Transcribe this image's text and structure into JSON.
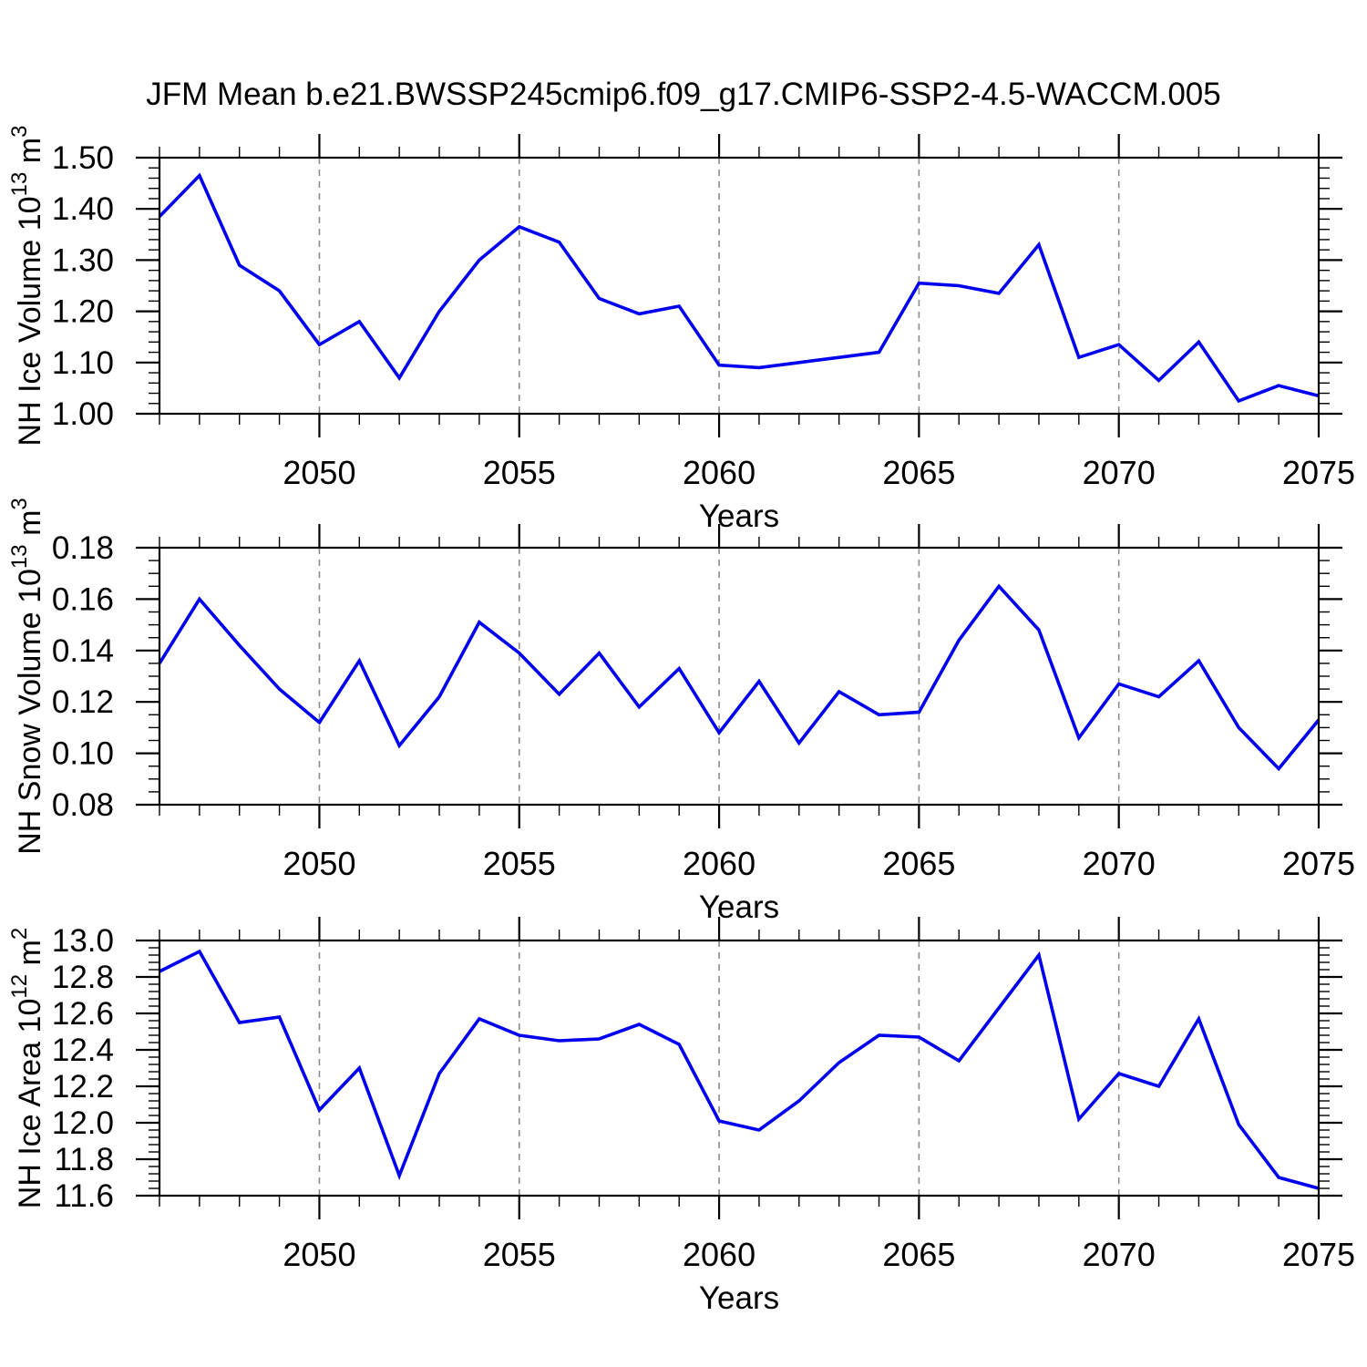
{
  "title": "JFM Mean b.e21.BWSSP245cmip6.f09_g17.CMIP6-SSP2-4.5-WACCM.005",
  "style": {
    "line_color": "#0000EE",
    "grid_color": "#8C8C8C",
    "frame_color": "#000000"
  },
  "x_axis": {
    "label": "Years",
    "min": 2046,
    "max": 2075,
    "major_ticks": [
      2050,
      2055,
      2060,
      2065,
      2070,
      2075
    ],
    "minor_step": 1,
    "grid_years": [
      2050,
      2055,
      2060,
      2065,
      2070
    ]
  },
  "chart_data": [
    {
      "id": "nh-ice-volume",
      "type": "line",
      "ylabel": "NH Ice Volume 10^13 m^3",
      "ylabel_parts": [
        {
          "t": "NH Ice Volume 10"
        },
        {
          "t": "13",
          "sup": true
        },
        {
          "t": " m"
        },
        {
          "t": "3",
          "sup": true
        }
      ],
      "xlabel": "Years",
      "ylim": [
        1.0,
        1.5
      ],
      "yticks": {
        "major_step": 0.1,
        "minor_step": 0.02,
        "decimals": 2
      },
      "x": [
        2046,
        2047,
        2048,
        2049,
        2050,
        2051,
        2052,
        2053,
        2054,
        2055,
        2056,
        2057,
        2058,
        2059,
        2060,
        2061,
        2062,
        2063,
        2064,
        2065,
        2066,
        2067,
        2068,
        2069,
        2070,
        2071,
        2072,
        2073,
        2074,
        2075
      ],
      "values": [
        1.385,
        1.465,
        1.29,
        1.24,
        1.135,
        1.18,
        1.07,
        1.2,
        1.3,
        1.365,
        1.335,
        1.225,
        1.195,
        1.21,
        1.095,
        1.09,
        1.1,
        1.11,
        1.12,
        1.255,
        1.25,
        1.235,
        1.33,
        1.11,
        1.135,
        1.065,
        1.14,
        1.025,
        1.055,
        1.035
      ]
    },
    {
      "id": "nh-snow-volume",
      "type": "line",
      "ylabel": "NH Snow Volume 10^13 m^3",
      "ylabel_parts": [
        {
          "t": "NH Snow Volume 10"
        },
        {
          "t": "13",
          "sup": true
        },
        {
          "t": " m"
        },
        {
          "t": "3",
          "sup": true
        }
      ],
      "xlabel": "Years",
      "ylim": [
        0.08,
        0.18
      ],
      "yticks": {
        "major_step": 0.02,
        "minor_step": 0.005,
        "decimals": 2
      },
      "x": [
        2046,
        2047,
        2048,
        2049,
        2050,
        2051,
        2052,
        2053,
        2054,
        2055,
        2056,
        2057,
        2058,
        2059,
        2060,
        2061,
        2062,
        2063,
        2064,
        2065,
        2066,
        2067,
        2068,
        2069,
        2070,
        2071,
        2072,
        2073,
        2074,
        2075
      ],
      "values": [
        0.135,
        0.16,
        0.142,
        0.125,
        0.112,
        0.136,
        0.103,
        0.122,
        0.151,
        0.139,
        0.123,
        0.139,
        0.118,
        0.133,
        0.108,
        0.128,
        0.104,
        0.124,
        0.115,
        0.116,
        0.144,
        0.165,
        0.148,
        0.106,
        0.127,
        0.122,
        0.136,
        0.11,
        0.094,
        0.113
      ]
    },
    {
      "id": "nh-ice-area",
      "type": "line",
      "ylabel": "NH Ice Area 10^12 m^2",
      "ylabel_parts": [
        {
          "t": "NH Ice Area 10"
        },
        {
          "t": "12",
          "sup": true
        },
        {
          "t": " m"
        },
        {
          "t": "2",
          "sup": true
        }
      ],
      "xlabel": "Years",
      "ylim": [
        11.6,
        13.0
      ],
      "yticks": {
        "major_step": 0.2,
        "minor_step": 0.04,
        "decimals": 1
      },
      "x": [
        2046,
        2047,
        2048,
        2049,
        2050,
        2051,
        2052,
        2053,
        2054,
        2055,
        2056,
        2057,
        2058,
        2059,
        2060,
        2061,
        2062,
        2063,
        2064,
        2065,
        2066,
        2067,
        2068,
        2069,
        2070,
        2071,
        2072,
        2073,
        2074,
        2075
      ],
      "values": [
        12.83,
        12.94,
        12.55,
        12.58,
        12.07,
        12.3,
        11.71,
        12.27,
        12.57,
        12.48,
        12.45,
        12.46,
        12.54,
        12.43,
        12.01,
        11.96,
        12.12,
        12.33,
        12.48,
        12.47,
        12.34,
        12.63,
        12.92,
        12.02,
        12.27,
        12.2,
        12.57,
        11.99,
        11.7,
        11.64
      ]
    }
  ]
}
